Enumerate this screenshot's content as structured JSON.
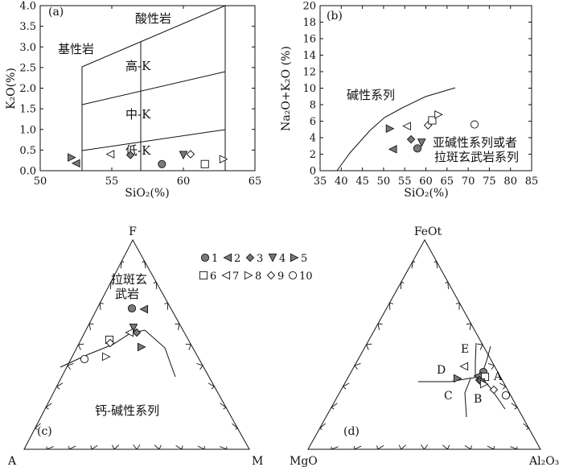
{
  "colors": {
    "fill_dark": "#7a7a7a",
    "fill_mid": "#9a9a9a",
    "stroke": "#111111",
    "white": "#ffffff"
  },
  "legend": {
    "items": [
      {
        "label": "1",
        "marker": "circle",
        "fill": "dark"
      },
      {
        "label": "2",
        "marker": "tri-left",
        "fill": "dark"
      },
      {
        "label": "3",
        "marker": "diamond",
        "fill": "dark"
      },
      {
        "label": "4",
        "marker": "tri-down",
        "fill": "dark"
      },
      {
        "label": "5",
        "marker": "tri-right",
        "fill": "dark"
      },
      {
        "label": "6",
        "marker": "square",
        "fill": "white"
      },
      {
        "label": "7",
        "marker": "tri-left",
        "fill": "white"
      },
      {
        "label": "8",
        "marker": "tri-right",
        "fill": "white"
      },
      {
        "label": "9",
        "marker": "diamond",
        "fill": "white"
      },
      {
        "label": "10",
        "marker": "circle",
        "fill": "white"
      }
    ]
  },
  "chart_data": [
    {
      "panel": "(a)",
      "type": "scatter",
      "xlabel": "SiO₂(%)",
      "ylabel": "K₂O(%)",
      "xlim": [
        50,
        65
      ],
      "ylim": [
        0,
        4.0
      ],
      "xticks": [
        "50",
        "55",
        "60",
        "65"
      ],
      "yticks": [
        "0.0",
        "0.5",
        "1.0",
        "1.5",
        "2.0",
        "2.5",
        "3.0",
        "3.5",
        "4.0"
      ],
      "field_labels": [
        "基性岩",
        "酸性岩",
        "高-K",
        "中-K",
        "低-K"
      ],
      "points": [
        {
          "series": "5",
          "x": 52.2,
          "y": 0.32
        },
        {
          "series": "2",
          "x": 52.5,
          "y": 0.18
        },
        {
          "series": "7",
          "x": 54.9,
          "y": 0.4
        },
        {
          "series": "3",
          "x": 56.3,
          "y": 0.38
        },
        {
          "series": "1",
          "x": 58.5,
          "y": 0.16
        },
        {
          "series": "4",
          "x": 60.0,
          "y": 0.38
        },
        {
          "series": "9",
          "x": 60.5,
          "y": 0.4
        },
        {
          "series": "6",
          "x": 61.5,
          "y": 0.16
        },
        {
          "series": "8",
          "x": 62.8,
          "y": 0.28
        }
      ]
    },
    {
      "panel": "(b)",
      "type": "scatter",
      "xlabel": "SiO₂(%)",
      "ylabel": "Na₂O+K₂O (%)",
      "xlim": [
        35,
        85
      ],
      "ylim": [
        0,
        20
      ],
      "xticks": [
        "35",
        "40",
        "45",
        "50",
        "55",
        "60",
        "65",
        "70",
        "75",
        "80",
        "85"
      ],
      "yticks": [
        "0",
        "2",
        "4",
        "6",
        "8",
        "10",
        "12",
        "14",
        "16",
        "18",
        "20"
      ],
      "field_labels": [
        "碱性系列",
        "亚碱性系列或者",
        "拉斑玄武岩系列"
      ],
      "points": [
        {
          "series": "5",
          "x": 51.5,
          "y": 5.1
        },
        {
          "series": "2",
          "x": 52.2,
          "y": 2.6
        },
        {
          "series": "7",
          "x": 55.5,
          "y": 5.4
        },
        {
          "series": "3",
          "x": 56.5,
          "y": 3.8
        },
        {
          "series": "1",
          "x": 58.0,
          "y": 2.7
        },
        {
          "series": "4",
          "x": 59.0,
          "y": 3.4
        },
        {
          "series": "9",
          "x": 60.5,
          "y": 5.5
        },
        {
          "series": "6",
          "x": 61.5,
          "y": 6.1
        },
        {
          "series": "8",
          "x": 63.0,
          "y": 6.8
        },
        {
          "series": "10",
          "x": 71.5,
          "y": 5.6
        }
      ]
    },
    {
      "panel": "(c)",
      "type": "scatter",
      "apex_labels": {
        "top": "F",
        "left": "A",
        "right": "M"
      },
      "field_labels": [
        "拉斑玄",
        "武岩",
        "钙-碱性系列"
      ]
    },
    {
      "panel": "(d)",
      "type": "scatter",
      "apex_labels": {
        "top": "FeOt",
        "left": "MgO",
        "right": "Al₂O₃"
      },
      "field_labels": [
        "A",
        "B",
        "C",
        "D",
        "E"
      ]
    }
  ]
}
